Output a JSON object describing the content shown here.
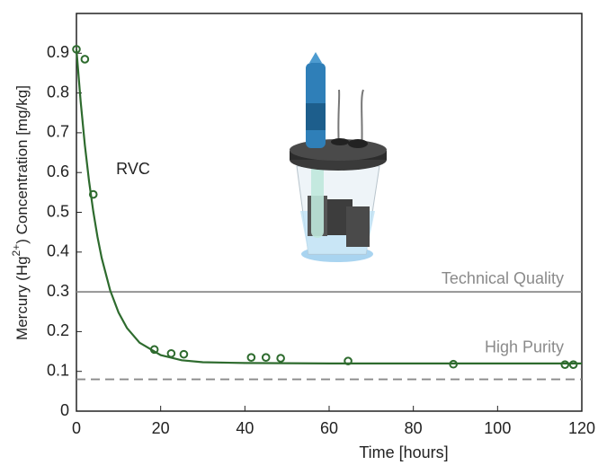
{
  "chart_data": {
    "type": "scatter",
    "xlabel": "Time [hours]",
    "ylabel": [
      "Mercury (Hg",
      "2+",
      ") Concentration [mg/kg]"
    ],
    "xlim": [
      0,
      120
    ],
    "ylim": [
      0,
      1
    ],
    "xticks": [
      0,
      20,
      40,
      60,
      80,
      100,
      120
    ],
    "yticks": [
      0,
      0.1,
      0.2,
      0.3,
      0.4,
      0.5,
      0.6,
      0.7,
      0.8,
      0.9
    ],
    "annotations": [
      "RVC"
    ],
    "series": [
      {
        "name": "RVC",
        "color": "#2e6b2e",
        "mode": "markers",
        "x": [
          0,
          2,
          4,
          18.5,
          22.5,
          25.5,
          41.5,
          45,
          48.5,
          64.5,
          89.5,
          116,
          118
        ],
        "values": [
          0.91,
          0.885,
          0.545,
          0.155,
          0.145,
          0.143,
          0.135,
          0.135,
          0.133,
          0.126,
          0.118,
          0.117,
          0.117
        ]
      },
      {
        "name": "fit",
        "color": "#2e6b2e",
        "mode": "line",
        "x": [
          0,
          1,
          2,
          3,
          4,
          5,
          6,
          8,
          10,
          12,
          15,
          20,
          25,
          30,
          40,
          60,
          80,
          100,
          120
        ],
        "values": [
          0.91,
          0.779,
          0.669,
          0.578,
          0.502,
          0.438,
          0.385,
          0.304,
          0.248,
          0.209,
          0.172,
          0.141,
          0.128,
          0.123,
          0.121,
          0.12,
          0.12,
          0.12,
          0.12
        ]
      }
    ],
    "reference_lines": [
      {
        "value": 0.3,
        "label": "Technical Quality",
        "color": "#8a8a8a",
        "dashed": false
      },
      {
        "value": 0.08,
        "label": "High Purity",
        "color": "#8a8a8a",
        "dashed": true
      }
    ]
  }
}
